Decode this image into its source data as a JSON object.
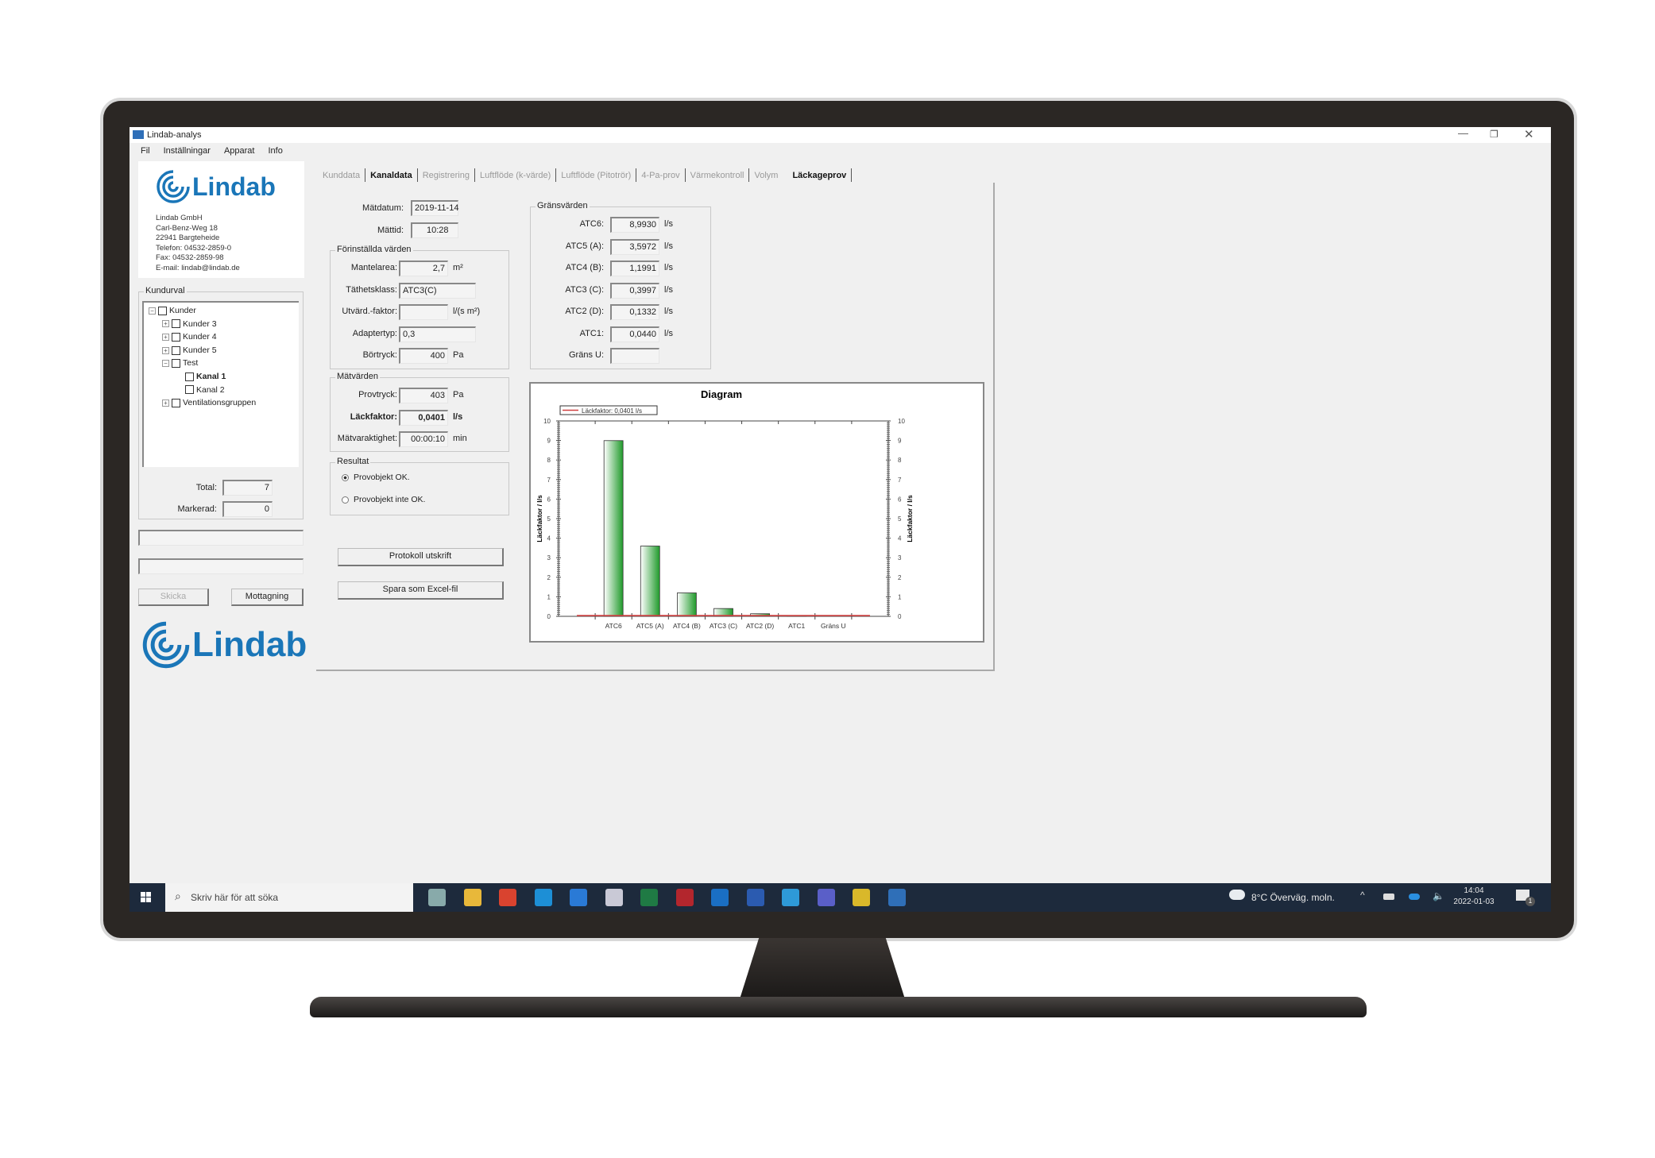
{
  "window": {
    "title": "Lindab-analys",
    "menu": [
      "Fil",
      "Inställningar",
      "Apparat",
      "Info"
    ]
  },
  "company": {
    "logo": "Lindab",
    "lines": [
      "Lindab GmbH",
      "Carl-Benz-Weg 18",
      "22941 Bargteheide",
      "Telefon: 04532-2859-0",
      "Fax: 04532-2859-98",
      "E-mail: lindab@lindab.de"
    ]
  },
  "kundurval": {
    "title": "Kundurval",
    "tree": [
      {
        "label": "Kunder",
        "level": 0,
        "expander": "−",
        "bold": false
      },
      {
        "label": "Kunder 3",
        "level": 1,
        "expander": "+",
        "bold": false
      },
      {
        "label": "Kunder 4",
        "level": 1,
        "expander": "+",
        "bold": false
      },
      {
        "label": "Kunder 5",
        "level": 1,
        "expander": "+",
        "bold": false
      },
      {
        "label": "Test",
        "level": 1,
        "expander": "−",
        "bold": false
      },
      {
        "label": "Kanal 1",
        "level": 2,
        "expander": "",
        "bold": true
      },
      {
        "label": "Kanal 2",
        "level": 2,
        "expander": "",
        "bold": false
      },
      {
        "label": "Ventilationsgruppen",
        "level": 1,
        "expander": "+",
        "bold": false
      }
    ],
    "total_label": "Total:",
    "total": "7",
    "markerad_label": "Markerad:",
    "markerad": "0"
  },
  "buttons": {
    "skicka": "Skicka",
    "mottagning": "Mottagning",
    "protokoll": "Protokoll utskrift",
    "excel": "Spara som Excel-fil"
  },
  "tabs": [
    {
      "label": "Kunddata",
      "state": "disabled"
    },
    {
      "label": "Kanaldata",
      "state": "enabled"
    },
    {
      "label": "Registrering",
      "state": "disabled"
    },
    {
      "label": "Luftflöde (k-värde)",
      "state": "disabled"
    },
    {
      "label": "Luftflöde (Pitotrör)",
      "state": "disabled"
    },
    {
      "label": "4-Pa-prov",
      "state": "disabled"
    },
    {
      "label": "Värmekontroll",
      "state": "disabled"
    },
    {
      "label": "Volym",
      "state": "disabled"
    },
    {
      "label": "Läckageprov",
      "state": "active"
    }
  ],
  "form": {
    "matdatum_label": "Mätdatum:",
    "matdatum": "2019-11-14",
    "mattid_label": "Mättid:",
    "mattid": "10:28",
    "forinst": {
      "title": "Förinställda värden",
      "rows": [
        {
          "label": "Mantelarea:",
          "value": "2,7",
          "unit": "m²"
        },
        {
          "label": "Täthetsklass:",
          "value": "ATC3(C)",
          "unit": ""
        },
        {
          "label": "Utvärd.-faktor:",
          "value": "",
          "unit": "l/(s m²)"
        },
        {
          "label": "Adaptertyp:",
          "value": "0,3",
          "unit": ""
        },
        {
          "label": "Börtryck:",
          "value": "400",
          "unit": "Pa"
        }
      ]
    },
    "matvarden": {
      "title": "Mätvärden",
      "rows": [
        {
          "label": "Provtryck:",
          "value": "403",
          "unit": "Pa"
        },
        {
          "label": "Läckfaktor:",
          "value": "0,0401",
          "unit": "l/s"
        },
        {
          "label": "Mätvaraktighet:",
          "value": "00:00:10",
          "unit": "min"
        }
      ]
    },
    "resultat": {
      "title": "Resultat",
      "options": [
        {
          "label": "Provobjekt OK.",
          "checked": true
        },
        {
          "label": "Provobjekt inte OK.",
          "checked": false
        }
      ]
    },
    "gransvarden": {
      "title": "Gränsvärden",
      "rows": [
        {
          "label": "ATC6:",
          "value": "8,9930",
          "unit": "l/s"
        },
        {
          "label": "ATC5 (A):",
          "value": "3,5972",
          "unit": "l/s"
        },
        {
          "label": "ATC4 (B):",
          "value": "1,1991",
          "unit": "l/s"
        },
        {
          "label": "ATC3 (C):",
          "value": "0,3997",
          "unit": "l/s"
        },
        {
          "label": "ATC2 (D):",
          "value": "0,1332",
          "unit": "l/s"
        },
        {
          "label": "ATC1:",
          "value": "0,0440",
          "unit": "l/s"
        },
        {
          "label": "Gräns U:",
          "value": "",
          "unit": ""
        }
      ]
    }
  },
  "chart_data": {
    "type": "bar",
    "title": "Diagram",
    "categories": [
      "ATC6",
      "ATC5 (A)",
      "ATC4 (B)",
      "ATC3 (C)",
      "ATC2 (D)",
      "ATC1",
      "Gräns U"
    ],
    "values": [
      8.993,
      3.5972,
      1.1991,
      0.3997,
      0.1332,
      0.044,
      null
    ],
    "ylabel": "Läckfaktor / l/s",
    "ylabel_right": "Läckfaktor / l/s",
    "ylim": [
      0,
      10
    ],
    "yticks": [
      0,
      1,
      2,
      3,
      4,
      5,
      6,
      7,
      8,
      9,
      10
    ],
    "line": {
      "name": "Läckfaktor: 0,0401 l/s",
      "value": 0.0401,
      "color": "#d04040"
    },
    "bar_color": "#1f9a2a",
    "legend": "top-left",
    "grid": false
  },
  "taskbar": {
    "search_placeholder": "Skriv här för att söka",
    "weather": "8°C  Överväg. moln.",
    "time": "14:04",
    "date": "2022-01-03",
    "notifications": "1",
    "apps": [
      {
        "name": "task-view",
        "color": "#8aa"
      },
      {
        "name": "file-explorer",
        "color": "#e8b83a"
      },
      {
        "name": "chrome",
        "color": "#d9432f"
      },
      {
        "name": "edge",
        "color": "#1d8fd6"
      },
      {
        "name": "internet-explorer",
        "color": "#2a7ad6"
      },
      {
        "name": "app-generic",
        "color": "#c9c9d6"
      },
      {
        "name": "excel",
        "color": "#1f7a44"
      },
      {
        "name": "access",
        "color": "#b3262d"
      },
      {
        "name": "outlook",
        "color": "#1a6fc4"
      },
      {
        "name": "word",
        "color": "#2b5bb0"
      },
      {
        "name": "app-blue",
        "color": "#2e9ad8"
      },
      {
        "name": "teams",
        "color": "#5a5fc8"
      },
      {
        "name": "app-yellow",
        "color": "#d9b82a"
      },
      {
        "name": "lindab-analys",
        "color": "#2f6fb8"
      }
    ]
  },
  "colors": {
    "brand": "#1a76b8",
    "taskbar": "#1d2a3c"
  }
}
